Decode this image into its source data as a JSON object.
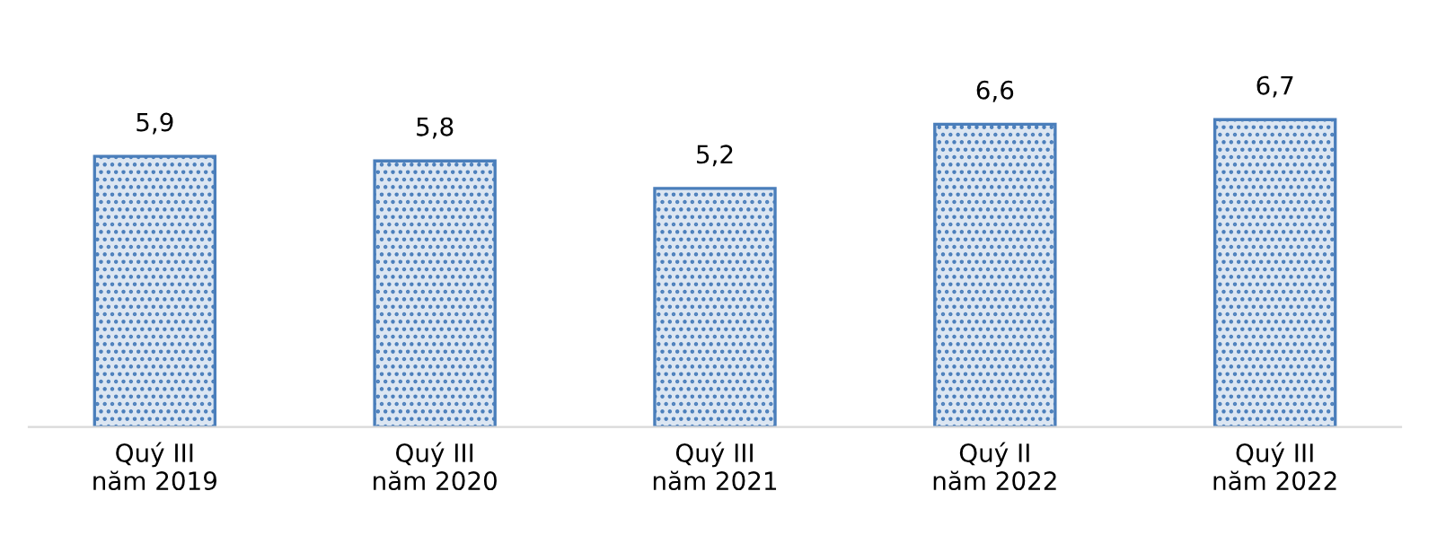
{
  "chart_data": {
    "type": "bar",
    "categories": [
      "Quý III\nnăm 2019",
      "Quý III\nnăm 2020",
      "Quý III\nnăm 2021",
      "Quý II\nnăm 2022",
      "Quý III\nnăm 2022"
    ],
    "values": [
      5.9,
      5.8,
      5.2,
      6.6,
      6.7
    ],
    "color": "#4a7ebb",
    "data_labels": true,
    "value_labels": [
      "5,9",
      "5,8",
      "5,2",
      "6,6",
      "6,7"
    ],
    "grid": false,
    "legend": false
  }
}
